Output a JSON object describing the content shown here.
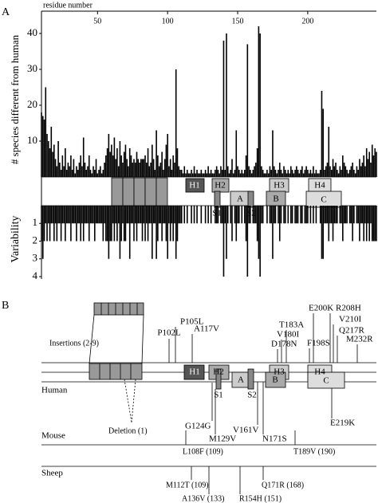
{
  "chart_data": [
    {
      "type": "bar",
      "x_label": "residue number",
      "y_label": "# species different from human",
      "color": "#000000",
      "xlim": [
        10,
        249
      ],
      "xticks": [
        50,
        100,
        150,
        200
      ],
      "ylim": [
        0,
        43
      ],
      "yticks": [
        10,
        20,
        30,
        40
      ],
      "x": [
        10,
        11,
        12,
        13,
        14,
        15,
        16,
        17,
        18,
        19,
        20,
        21,
        22,
        23,
        24,
        25,
        26,
        27,
        28,
        29,
        30,
        31,
        32,
        33,
        34,
        35,
        36,
        37,
        38,
        39,
        40,
        41,
        42,
        43,
        44,
        45,
        46,
        47,
        48,
        49,
        50,
        51,
        52,
        53,
        54,
        55,
        56,
        57,
        58,
        59,
        60,
        61,
        62,
        63,
        64,
        65,
        66,
        67,
        68,
        69,
        70,
        71,
        72,
        73,
        74,
        75,
        76,
        77,
        78,
        79,
        80,
        81,
        82,
        83,
        84,
        85,
        86,
        87,
        88,
        89,
        90,
        91,
        92,
        93,
        94,
        95,
        96,
        97,
        98,
        99,
        100,
        101,
        102,
        103,
        104,
        105,
        106,
        107,
        108,
        109,
        110,
        111,
        112,
        113,
        114,
        115,
        116,
        117,
        118,
        119,
        120,
        121,
        122,
        123,
        124,
        125,
        126,
        127,
        128,
        129,
        130,
        131,
        132,
        133,
        134,
        135,
        136,
        137,
        138,
        139,
        140,
        141,
        142,
        143,
        144,
        145,
        146,
        147,
        148,
        149,
        150,
        151,
        152,
        153,
        154,
        155,
        156,
        157,
        158,
        159,
        160,
        161,
        162,
        163,
        164,
        165,
        166,
        167,
        168,
        169,
        170,
        171,
        172,
        173,
        174,
        175,
        176,
        177,
        178,
        179,
        180,
        181,
        182,
        183,
        184,
        185,
        186,
        187,
        188,
        189,
        190,
        191,
        192,
        193,
        194,
        195,
        196,
        197,
        198,
        199,
        200,
        201,
        202,
        203,
        204,
        205,
        206,
        207,
        208,
        209,
        210,
        211,
        212,
        213,
        214,
        215,
        216,
        217,
        218,
        219,
        220,
        221,
        222,
        223,
        224,
        225,
        226,
        227,
        228,
        229,
        230,
        231,
        232,
        233,
        234,
        235,
        236,
        237,
        238,
        239,
        240,
        241,
        242,
        243,
        244,
        245,
        246,
        247,
        248,
        249
      ],
      "values": [
        18,
        17,
        16,
        25,
        12,
        10,
        8,
        14,
        7,
        9,
        5,
        3,
        10,
        4,
        2,
        6,
        3,
        8,
        2,
        4,
        3,
        6,
        2,
        5,
        1,
        3,
        2,
        4,
        6,
        3,
        11,
        4,
        2,
        3,
        6,
        2,
        1,
        3,
        2,
        5,
        1,
        2,
        3,
        1,
        2,
        4,
        6,
        8,
        12,
        7,
        9,
        6,
        11,
        5,
        8,
        3,
        10,
        6,
        4,
        7,
        9,
        5,
        3,
        8,
        6,
        4,
        5,
        4,
        7,
        5,
        4,
        5,
        5,
        5,
        6,
        4,
        8,
        3,
        4,
        9,
        5,
        2,
        13,
        6,
        3,
        4,
        7,
        2,
        5,
        9,
        12,
        3,
        5,
        2,
        6,
        4,
        30,
        8,
        3,
        2,
        2,
        1,
        3,
        1,
        2,
        1,
        1,
        2,
        1,
        3,
        1,
        2,
        1,
        1,
        2,
        1,
        1,
        2,
        1,
        3,
        1,
        2,
        1,
        1,
        2,
        3,
        2,
        1,
        3,
        2,
        38,
        2,
        40,
        3,
        1,
        2,
        5,
        1,
        2,
        13,
        3,
        2,
        1,
        2,
        1,
        2,
        6,
        37,
        3,
        2,
        1,
        2,
        3,
        4,
        8,
        42,
        40,
        3,
        2,
        1,
        1,
        2,
        1,
        3,
        2,
        13,
        3,
        2,
        1,
        2,
        4,
        2,
        1,
        3,
        2,
        1,
        2,
        1,
        3,
        2,
        1,
        2,
        3,
        2,
        1,
        2,
        3,
        1,
        2,
        3,
        2,
        1,
        2,
        1,
        3,
        1,
        2,
        1,
        1,
        2,
        24,
        19,
        2,
        3,
        4,
        14,
        3,
        2,
        5,
        3,
        4,
        2,
        1,
        3,
        2,
        6,
        4,
        3,
        2,
        1,
        2,
        3,
        4,
        2,
        1,
        3,
        2,
        5,
        3,
        4,
        6,
        3,
        8,
        5,
        7,
        4,
        9,
        6,
        8,
        7
      ]
    },
    {
      "type": "bar",
      "y_label": "Variability",
      "color": "#000000",
      "inverted": true,
      "xlim": [
        10,
        249
      ],
      "ylim": [
        0,
        4
      ],
      "yticks": [
        1,
        2,
        3,
        4
      ],
      "x": [
        10,
        11,
        12,
        13,
        14,
        15,
        16,
        17,
        18,
        19,
        20,
        21,
        22,
        23,
        24,
        25,
        26,
        27,
        28,
        29,
        30,
        31,
        32,
        33,
        34,
        35,
        36,
        37,
        38,
        39,
        40,
        41,
        42,
        43,
        44,
        45,
        46,
        47,
        48,
        49,
        50,
        51,
        52,
        53,
        54,
        55,
        56,
        57,
        58,
        59,
        60,
        61,
        62,
        63,
        64,
        65,
        66,
        67,
        68,
        69,
        70,
        71,
        72,
        73,
        74,
        75,
        76,
        77,
        78,
        79,
        80,
        81,
        82,
        83,
        84,
        85,
        86,
        87,
        88,
        89,
        90,
        91,
        92,
        93,
        94,
        95,
        96,
        97,
        98,
        99,
        100,
        101,
        102,
        103,
        104,
        105,
        106,
        107,
        108,
        109,
        110,
        111,
        112,
        113,
        114,
        115,
        116,
        117,
        118,
        119,
        120,
        121,
        122,
        123,
        124,
        125,
        126,
        127,
        128,
        129,
        130,
        131,
        132,
        133,
        134,
        135,
        136,
        137,
        138,
        139,
        140,
        141,
        142,
        143,
        144,
        145,
        146,
        147,
        148,
        149,
        150,
        151,
        152,
        153,
        154,
        155,
        156,
        157,
        158,
        159,
        160,
        161,
        162,
        163,
        164,
        165,
        166,
        167,
        168,
        169,
        170,
        171,
        172,
        173,
        174,
        175,
        176,
        177,
        178,
        179,
        180,
        181,
        182,
        183,
        184,
        185,
        186,
        187,
        188,
        189,
        190,
        191,
        192,
        193,
        194,
        195,
        196,
        197,
        198,
        199,
        200,
        201,
        202,
        203,
        204,
        205,
        206,
        207,
        208,
        209,
        210,
        211,
        212,
        213,
        214,
        215,
        216,
        217,
        218,
        219,
        220,
        221,
        222,
        223,
        224,
        225,
        226,
        227,
        228,
        229,
        230,
        231,
        232,
        233,
        234,
        235,
        236,
        237,
        238,
        239,
        240,
        241,
        242,
        243,
        244,
        245,
        246,
        247,
        248,
        249
      ],
      "values": [
        2,
        3,
        2,
        1,
        2,
        1,
        2,
        1,
        1,
        2,
        1,
        2,
        1,
        1,
        2,
        1,
        1,
        2,
        1,
        1,
        1,
        2,
        1,
        1,
        1,
        2,
        1,
        1,
        2,
        1,
        2,
        1,
        1,
        1,
        2,
        1,
        1,
        1,
        2,
        1,
        1,
        1,
        1,
        1,
        2,
        1,
        2,
        2,
        3,
        2,
        2,
        1,
        2,
        1,
        2,
        1,
        3,
        2,
        1,
        2,
        2,
        1,
        1,
        3,
        1,
        1,
        2,
        1,
        2,
        1,
        1,
        1,
        2,
        1,
        2,
        1,
        2,
        1,
        1,
        3,
        1,
        1,
        3,
        2,
        1,
        1,
        2,
        1,
        1,
        2,
        3,
        1,
        2,
        1,
        2,
        1,
        3,
        2,
        1,
        1,
        1,
        0,
        1,
        0,
        1,
        0,
        0,
        1,
        0,
        1,
        0,
        1,
        0,
        0,
        1,
        0,
        0,
        1,
        0,
        1,
        0,
        1,
        0,
        0,
        1,
        1,
        1,
        0,
        1,
        1,
        4,
        1,
        3,
        1,
        0,
        1,
        2,
        0,
        1,
        2,
        1,
        1,
        0,
        1,
        0,
        1,
        2,
        4,
        1,
        1,
        0,
        1,
        1,
        1,
        2,
        3,
        4,
        1,
        1,
        0,
        0,
        1,
        0,
        1,
        1,
        3,
        1,
        1,
        0,
        1,
        2,
        1,
        0,
        1,
        1,
        0,
        1,
        0,
        1,
        1,
        0,
        1,
        1,
        1,
        0,
        1,
        1,
        0,
        1,
        1,
        1,
        0,
        1,
        0,
        1,
        0,
        1,
        0,
        0,
        1,
        3,
        3,
        1,
        1,
        1,
        2,
        1,
        1,
        2,
        1,
        1,
        1,
        0,
        1,
        1,
        2,
        1,
        1,
        1,
        0,
        1,
        1,
        2,
        1,
        0,
        1,
        1,
        2,
        1,
        1,
        2,
        1,
        2,
        1,
        2,
        1,
        2,
        2,
        2,
        2
      ]
    }
  ],
  "panel_a": {
    "label": "A",
    "structure": [
      "H1",
      "H2",
      "A",
      "S1",
      "S2",
      "H3",
      "B",
      "H4",
      "C"
    ]
  },
  "panel_b": {
    "label": "B",
    "insertions": "Insertions (2-9)",
    "deletion": "Deletion (1)",
    "structure": [
      "H1",
      "H2",
      "A",
      "S1",
      "S2",
      "H3",
      "B",
      "H4",
      "C"
    ],
    "human": {
      "label": "Human",
      "mutations": [
        "P102L",
        "P105L",
        "A117V",
        "T183A",
        "V180I",
        "D178N",
        "F198S",
        "E200K",
        "R208H",
        "V210I",
        "Q217R",
        "M232R",
        "G124G",
        "M129V",
        "V161V",
        "N171S",
        "E219K"
      ]
    },
    "mouse": {
      "label": "Mouse",
      "mutations": [
        "L108F (109)",
        "T189V (190)"
      ]
    },
    "sheep": {
      "label": "Sheep",
      "mutations": [
        "M112T (109)",
        "A136V (133)",
        "R154H (151)",
        "Q171R (168)"
      ]
    }
  }
}
